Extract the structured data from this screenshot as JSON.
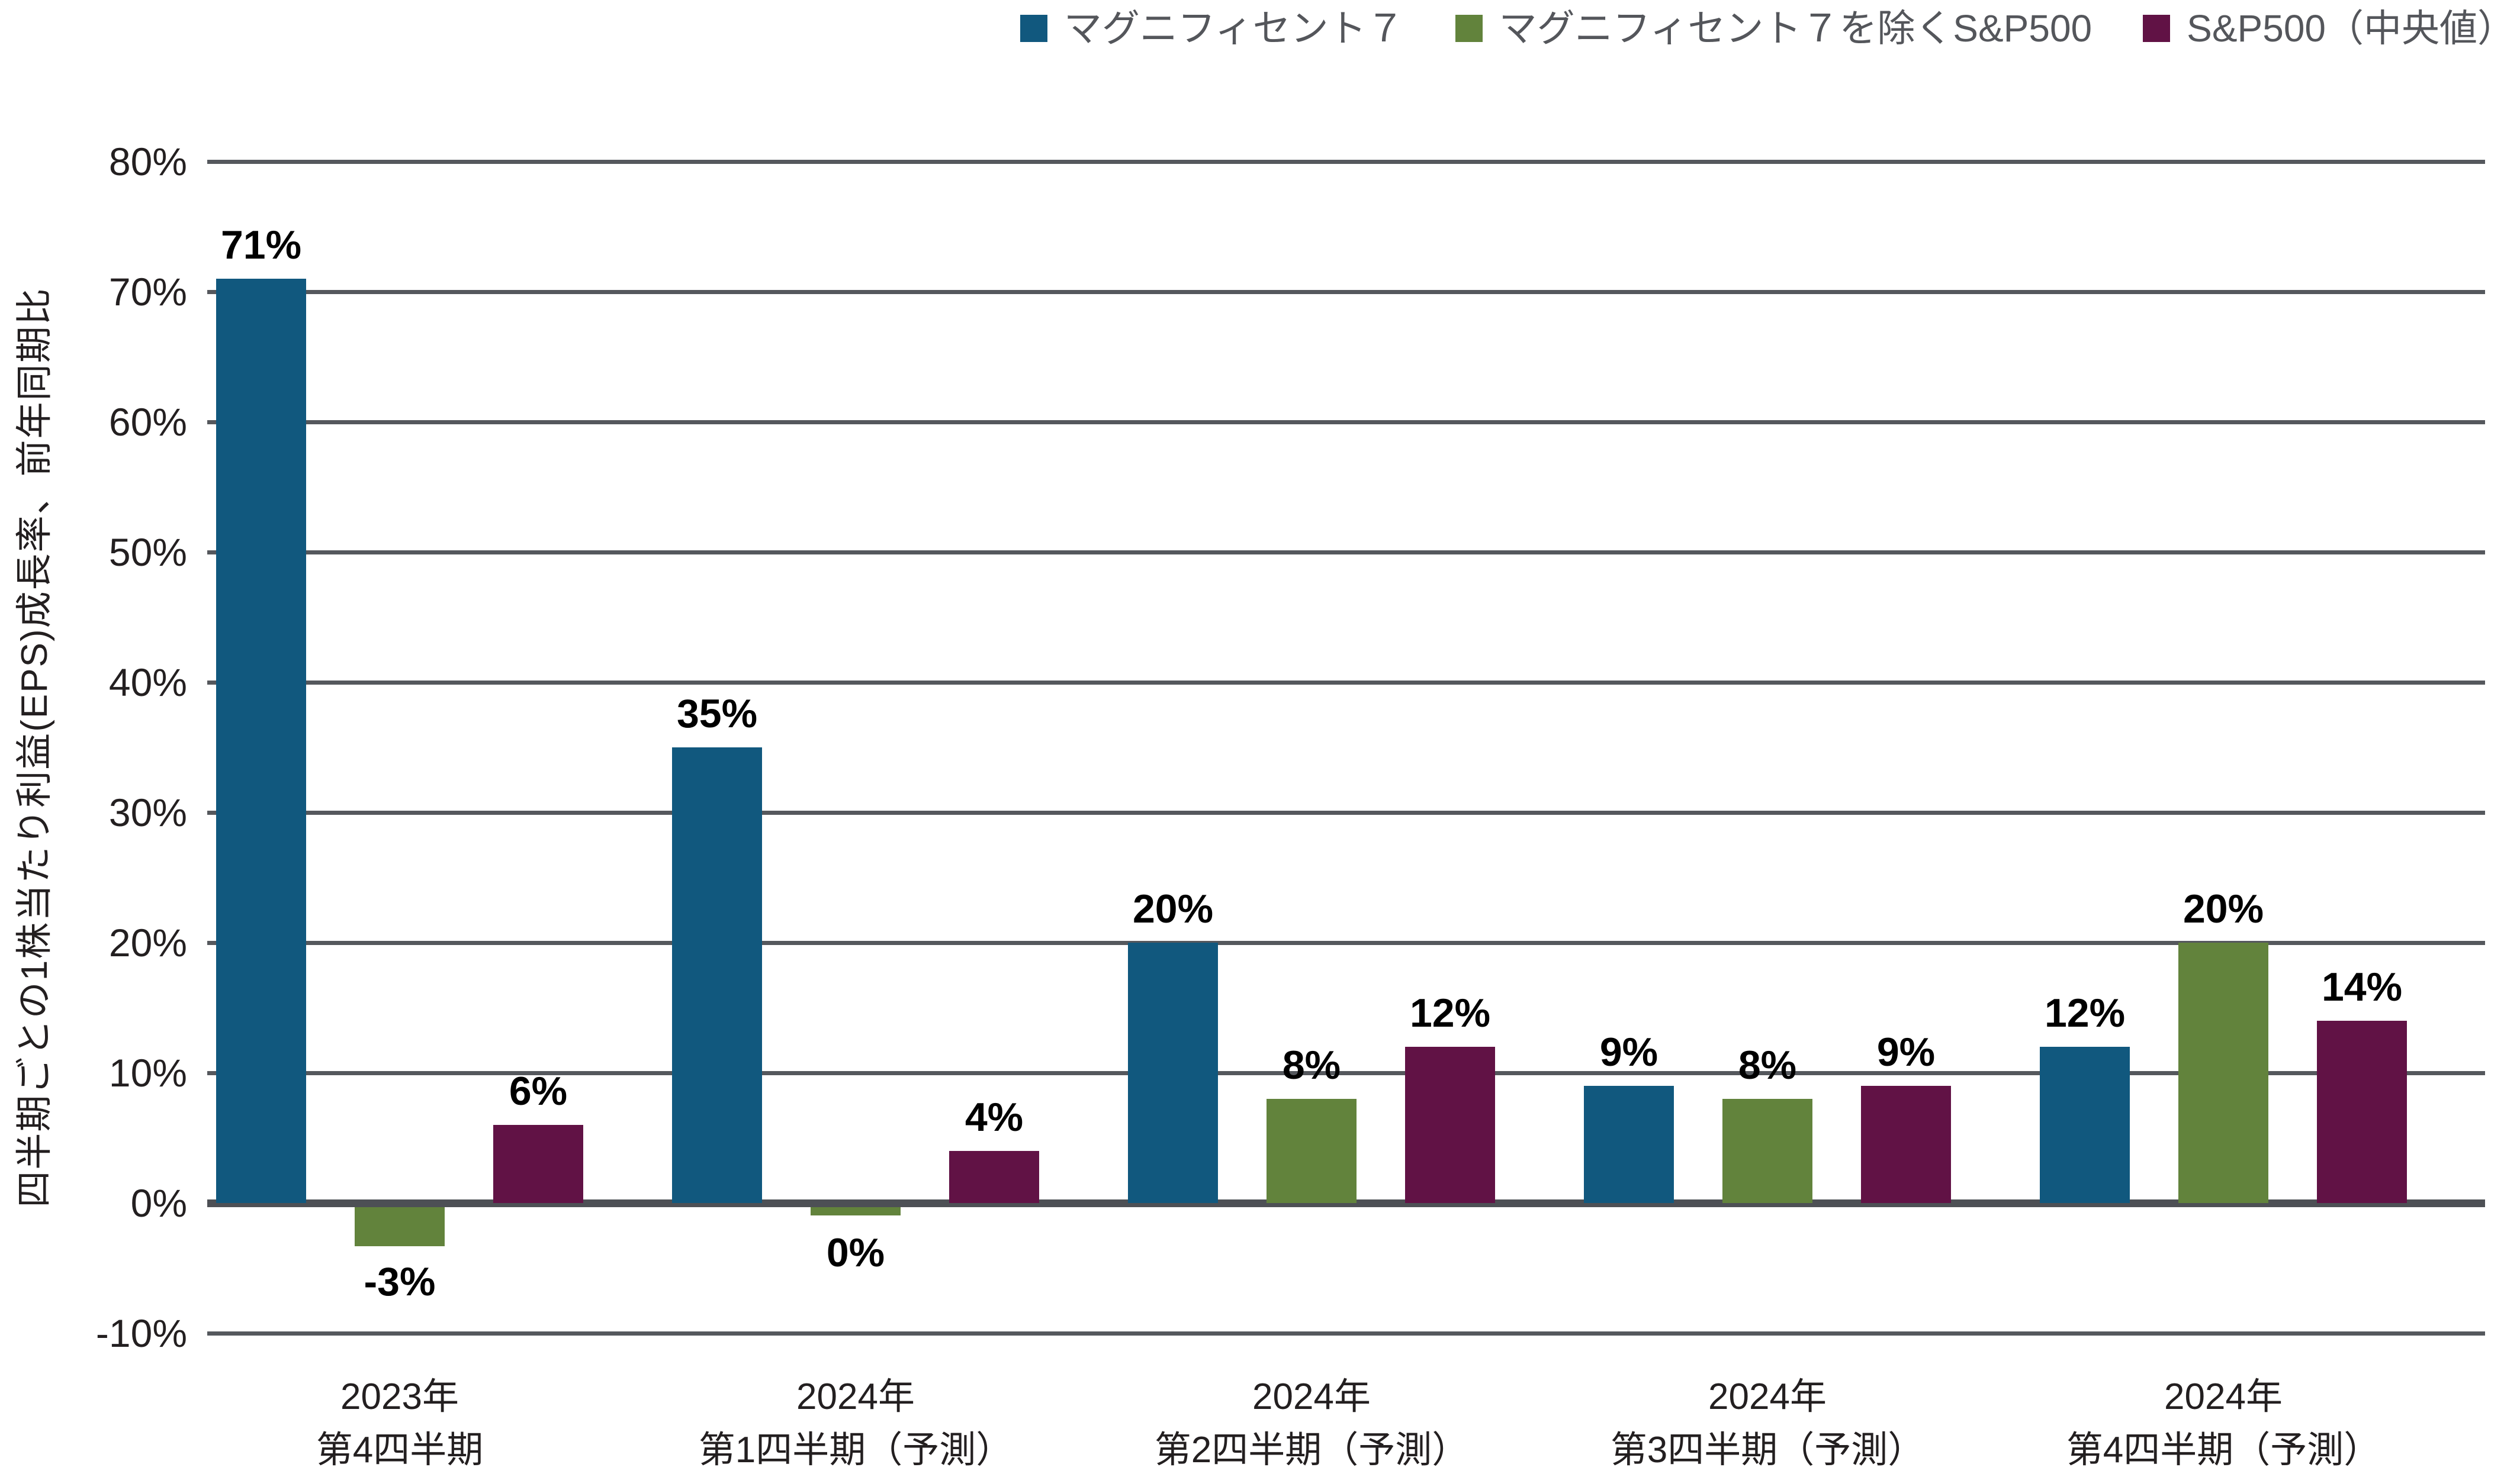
{
  "legend": {
    "items": [
      {
        "label": "マグニフィセント７",
        "color": "#11587e"
      },
      {
        "label": "マグニフィセント７を除くS&P500",
        "color": "#62833c"
      },
      {
        "label": "S&P500（中央値）",
        "color": "#611245"
      }
    ]
  },
  "chart_data": {
    "type": "bar",
    "title": "",
    "xlabel": "",
    "ylabel": "四半期ごとの1株当たり利益(EPS)成長率、前年同期比",
    "ylim": [
      -10,
      80
    ],
    "grid": true,
    "legend_position": "top-right",
    "yticks": [
      80,
      70,
      60,
      50,
      40,
      30,
      20,
      10,
      0,
      -10
    ],
    "ytick_labels": [
      "80%",
      "70%",
      "60%",
      "50%",
      "40%",
      "30%",
      "20%",
      "10%",
      "0%",
      "-10%"
    ],
    "categories": [
      [
        "2023年",
        "第4四半期"
      ],
      [
        "2024年",
        "第1四半期（予測）"
      ],
      [
        "2024年",
        "第2四半期（予測）"
      ],
      [
        "2024年",
        "第3四半期（予測）"
      ],
      [
        "2024年",
        "第4四半期（予測）"
      ]
    ],
    "series": [
      {
        "name": "マグニフィセント７",
        "color": "#11587e",
        "values": [
          71,
          35,
          20,
          9,
          12
        ],
        "labels": [
          "71%",
          "35%",
          "20%",
          "9%",
          "12%"
        ]
      },
      {
        "name": "マグニフィセント７を除くS&P500",
        "color": "#62833c",
        "values": [
          -3,
          0,
          8,
          8,
          20
        ],
        "labels": [
          "-3%",
          "0%",
          "8%",
          "8%",
          "20%"
        ]
      },
      {
        "name": "S&P500（中央値）",
        "color": "#611245",
        "values": [
          6,
          4,
          12,
          9,
          14
        ],
        "labels": [
          "6%",
          "4%",
          "12%",
          "9%",
          "14%"
        ]
      }
    ]
  },
  "colors": {
    "background": "#ffffff",
    "gridline": "#55585d",
    "zero_axis": "#4d5055",
    "tick_text": "#231f20",
    "value_text": "#000000",
    "legend_text": "#54565b"
  }
}
